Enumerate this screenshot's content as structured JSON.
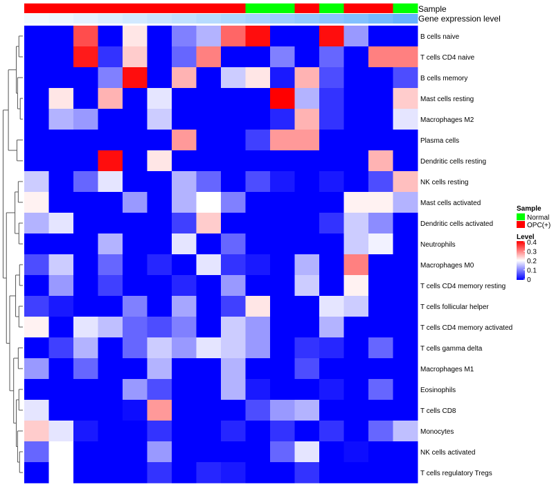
{
  "chart_data": {
    "type": "heatmap",
    "annotations": {
      "sample": {
        "title": "Sample",
        "values": [
          "OPC(+)",
          "OPC(+)",
          "OPC(+)",
          "OPC(+)",
          "OPC(+)",
          "OPC(+)",
          "OPC(+)",
          "OPC(+)",
          "OPC(+)",
          "Normal",
          "Normal",
          "OPC(+)",
          "Normal",
          "OPC(+)",
          "OPC(+)",
          "Normal"
        ]
      },
      "gene_expression_level": {
        "title": "Gene expression level",
        "values": [
          0.05,
          0.06,
          0.08,
          0.1,
          0.12,
          0.14,
          0.16,
          0.18,
          0.2,
          0.22,
          0.24,
          0.26,
          0.28,
          0.3,
          0.33,
          0.36
        ]
      }
    },
    "rows": [
      "B cells naive",
      "T cells CD4 naive",
      "B cells memory",
      "Mast cells resting",
      "Macrophages M2",
      "Plasma cells",
      "Dendritic cells resting",
      "NK cells resting",
      "Mast cells activated",
      "Dendritic cells activated",
      "Neutrophils",
      "Macrophages M0",
      "T cells CD4 memory resting",
      "T cells follicular helper",
      "T cells CD4 memory activated",
      "T cells gamma delta",
      "Macrophages M1",
      "Eosinophils",
      "T cells CD8",
      "Monocytes",
      "NK cells activated",
      "T cells regulatory  Tregs"
    ],
    "values": [
      [
        0,
        0,
        0.34,
        0,
        0.22,
        0,
        0.1,
        0.14,
        0.32,
        0.39,
        0,
        0,
        0.39,
        0.12,
        0,
        0
      ],
      [
        0,
        0,
        0.38,
        0.04,
        0.24,
        0,
        0.08,
        0.3,
        0,
        0,
        0.1,
        0,
        0.08,
        0,
        0.3,
        0.3
      ],
      [
        0,
        0,
        0,
        0.1,
        0.39,
        0,
        0.26,
        0,
        0.16,
        0.22,
        0.02,
        0.26,
        0.06,
        0,
        0,
        0.06
      ],
      [
        0,
        0.22,
        0,
        0.26,
        0,
        0.18,
        0,
        0,
        0,
        0,
        0.4,
        0.14,
        0.04,
        0,
        0,
        0.24
      ],
      [
        0,
        0.14,
        0.12,
        0,
        0,
        0.16,
        0,
        0,
        0,
        0,
        0.03,
        0.26,
        0.04,
        0,
        0,
        0.18
      ],
      [
        0,
        0,
        0,
        0,
        0,
        0,
        0.28,
        0,
        0,
        0.05,
        0.28,
        0.28,
        0,
        0,
        0,
        0
      ],
      [
        0,
        0,
        0,
        0.39,
        0,
        0.22,
        0,
        0,
        0,
        0,
        0,
        0,
        0,
        0,
        0.26,
        0
      ],
      [
        0.16,
        0,
        0.08,
        0.18,
        0,
        0,
        0.14,
        0.08,
        0,
        0.06,
        0.02,
        0,
        0.02,
        0,
        0.06,
        0.25
      ],
      [
        0.21,
        0,
        0,
        0,
        0.12,
        0,
        0.14,
        0.2,
        0.1,
        0,
        0,
        0,
        0,
        0.21,
        0.21,
        0.14
      ],
      [
        0.14,
        0.18,
        0,
        0,
        0,
        0,
        0.05,
        0.24,
        0,
        0,
        0,
        0,
        0.04,
        0.16,
        0.11,
        0
      ],
      [
        0,
        0,
        0,
        0.14,
        0,
        0,
        0.18,
        0,
        0.08,
        0,
        0,
        0,
        0,
        0.16,
        0.19,
        0
      ],
      [
        0.06,
        0.16,
        0,
        0.08,
        0,
        0.03,
        0,
        0.18,
        0.04,
        0.02,
        0,
        0.14,
        0,
        0.3,
        0,
        0
      ],
      [
        0,
        0.12,
        0,
        0.05,
        0,
        0,
        0.03,
        0,
        0.12,
        0,
        0,
        0.16,
        0,
        0.21,
        0,
        0
      ],
      [
        0.05,
        0.02,
        0,
        0,
        0.1,
        0,
        0.13,
        0,
        0.05,
        0.22,
        0,
        0,
        0.18,
        0.16,
        0,
        0
      ],
      [
        0.21,
        0,
        0.18,
        0.15,
        0.08,
        0.06,
        0.1,
        0,
        0.16,
        0.12,
        0,
        0,
        0.14,
        0,
        0,
        0
      ],
      [
        0,
        0.05,
        0.14,
        0,
        0.08,
        0.16,
        0.12,
        0.18,
        0.16,
        0.12,
        0,
        0.04,
        0.03,
        0,
        0.08,
        0
      ],
      [
        0.12,
        0,
        0.08,
        0,
        0,
        0.14,
        0,
        0,
        0.14,
        0,
        0,
        0.06,
        0,
        0,
        0,
        0
      ],
      [
        0,
        0,
        0,
        0,
        0.12,
        0.06,
        0,
        0,
        0.14,
        0.02,
        0,
        0,
        0.02,
        0,
        0.08,
        0
      ],
      [
        0.18,
        0,
        0,
        0,
        0.01,
        0.28,
        0,
        0,
        0,
        0.06,
        0.12,
        0.14,
        0,
        0,
        0,
        0
      ],
      [
        0.24,
        0.18,
        0.02,
        0,
        0,
        0.04,
        0,
        0,
        0.03,
        0,
        0.04,
        0,
        0.04,
        0,
        0.08,
        0.15
      ],
      [
        0.08,
        0.2,
        0,
        0,
        0,
        0.12,
        0,
        0,
        0,
        0,
        0.08,
        0.18,
        0,
        0.01,
        0,
        0
      ],
      [
        0,
        0.2,
        0,
        0,
        0,
        0.04,
        0,
        0.03,
        0.02,
        0,
        0,
        0.04,
        0,
        0,
        0,
        0
      ]
    ],
    "legend": {
      "sample_title": "Sample",
      "sample_items": [
        {
          "label": "Normal",
          "color": "#00ff00"
        },
        {
          "label": "OPC(+)",
          "color": "#ff0000"
        }
      ],
      "level_title": "Level",
      "level_ticks": [
        "0.4",
        "0.3",
        "0.2",
        "0.1",
        "0"
      ],
      "level_range": [
        0,
        0.4
      ]
    },
    "colors": {
      "low": "#0000ff",
      "mid": "#ffffff",
      "high": "#ff0000",
      "gel_low": "#f2f9ff",
      "gel_high": "#66b2ff",
      "dendrogram": "#555555"
    }
  }
}
